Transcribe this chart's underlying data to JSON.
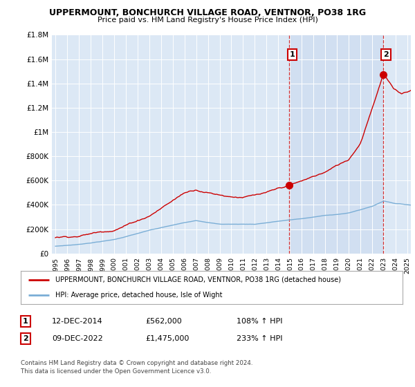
{
  "title": "UPPERMOUNT, BONCHURCH VILLAGE ROAD, VENTNOR, PO38 1RG",
  "subtitle": "Price paid vs. HM Land Registry's House Price Index (HPI)",
  "ylim": [
    0,
    1800000
  ],
  "yticks": [
    0,
    200000,
    400000,
    600000,
    800000,
    1000000,
    1200000,
    1400000,
    1600000,
    1800000
  ],
  "ytick_labels": [
    "£0",
    "£200K",
    "£400K",
    "£600K",
    "£800K",
    "£1M",
    "£1.2M",
    "£1.4M",
    "£1.6M",
    "£1.8M"
  ],
  "xlim_start": 1994.7,
  "xlim_end": 2025.3,
  "sale1_x": 2014.95,
  "sale1_price": 562000,
  "sale2_x": 2022.95,
  "sale2_price": 1475000,
  "legend_line1": "UPPERMOUNT, BONCHURCH VILLAGE ROAD, VENTNOR, PO38 1RG (detached house)",
  "legend_line2": "HPI: Average price, detached house, Isle of Wight",
  "footer1": "Contains HM Land Registry data © Crown copyright and database right 2024.",
  "footer2": "This data is licensed under the Open Government Licence v3.0.",
  "ann1_date": "12-DEC-2014",
  "ann1_price": "£562,000",
  "ann1_hpi": "108% ↑ HPI",
  "ann2_date": "09-DEC-2022",
  "ann2_price": "£1,475,000",
  "ann2_hpi": "233% ↑ HPI",
  "red_color": "#cc0000",
  "blue_color": "#7aaed6",
  "bg_color": "#dce8f5",
  "bg_highlight": "#c8d8ee",
  "white": "#ffffff"
}
